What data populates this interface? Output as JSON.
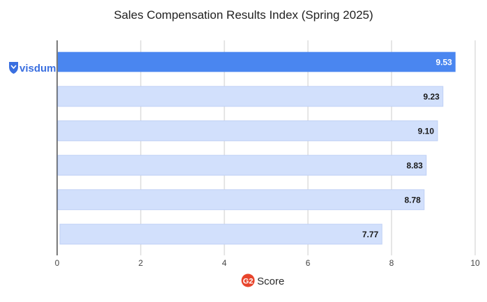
{
  "chart_data": {
    "type": "bar",
    "orientation": "horizontal",
    "title": "Sales Compensation Results Index (Spring 2025)",
    "xlabel": "Score",
    "xlabel_logo": "G2",
    "xlim": [
      0,
      10
    ],
    "xticks": [
      0,
      2,
      4,
      6,
      8,
      10
    ],
    "grid": true,
    "categories": [
      "visdum",
      "",
      "",
      "",
      "",
      ""
    ],
    "values": [
      9.53,
      9.23,
      9.1,
      8.83,
      8.78,
      7.77
    ],
    "value_labels": [
      "9.53",
      "9.23",
      "9.10",
      "8.83",
      "8.78",
      "7.77"
    ],
    "highlight_index": 0,
    "colors": {
      "highlight": "#4a86f0",
      "bar": "#d2e0fc",
      "bar_border": "#bfd0f5",
      "grid": "#cccccc",
      "axis": "#222222",
      "logo": "#e8452c",
      "brand": "#3a6fe0"
    }
  }
}
